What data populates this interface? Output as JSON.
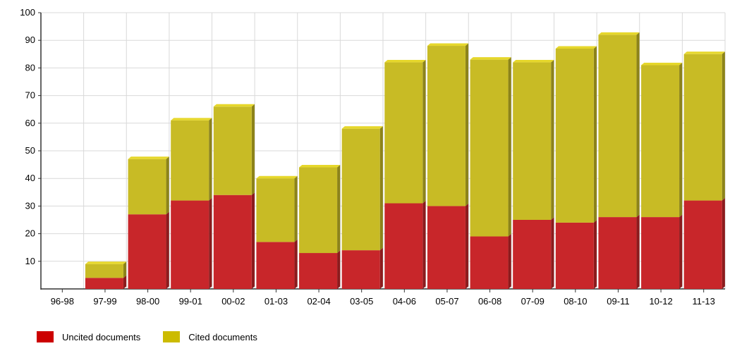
{
  "chart_data": {
    "type": "bar",
    "stacked": true,
    "categories": [
      "96-98",
      "97-99",
      "98-00",
      "99-01",
      "00-02",
      "01-03",
      "02-04",
      "03-05",
      "04-06",
      "05-07",
      "06-08",
      "07-09",
      "08-10",
      "09-11",
      "10-12",
      "11-13"
    ],
    "series": [
      {
        "name": "Uncited documents",
        "color": "#c8262a",
        "values": [
          0,
          4,
          27,
          32,
          34,
          17,
          13,
          14,
          31,
          30,
          19,
          25,
          24,
          26,
          26,
          32
        ]
      },
      {
        "name": "Cited documents",
        "color": "#c8bb25",
        "values": [
          0,
          5,
          20,
          29,
          32,
          23,
          31,
          44,
          51,
          58,
          64,
          57,
          63,
          66,
          55,
          53
        ]
      }
    ],
    "y_ticks": [
      10,
      20,
      30,
      40,
      50,
      60,
      70,
      80,
      90,
      100
    ],
    "ylim": [
      0,
      100
    ],
    "grid": true,
    "legend_position": "bottom-left",
    "style": "3d"
  },
  "legend": {
    "uncited_label": "Uncited documents",
    "cited_label": "Cited documents",
    "uncited_color": "#cc0000",
    "cited_color": "#ccbb00"
  }
}
